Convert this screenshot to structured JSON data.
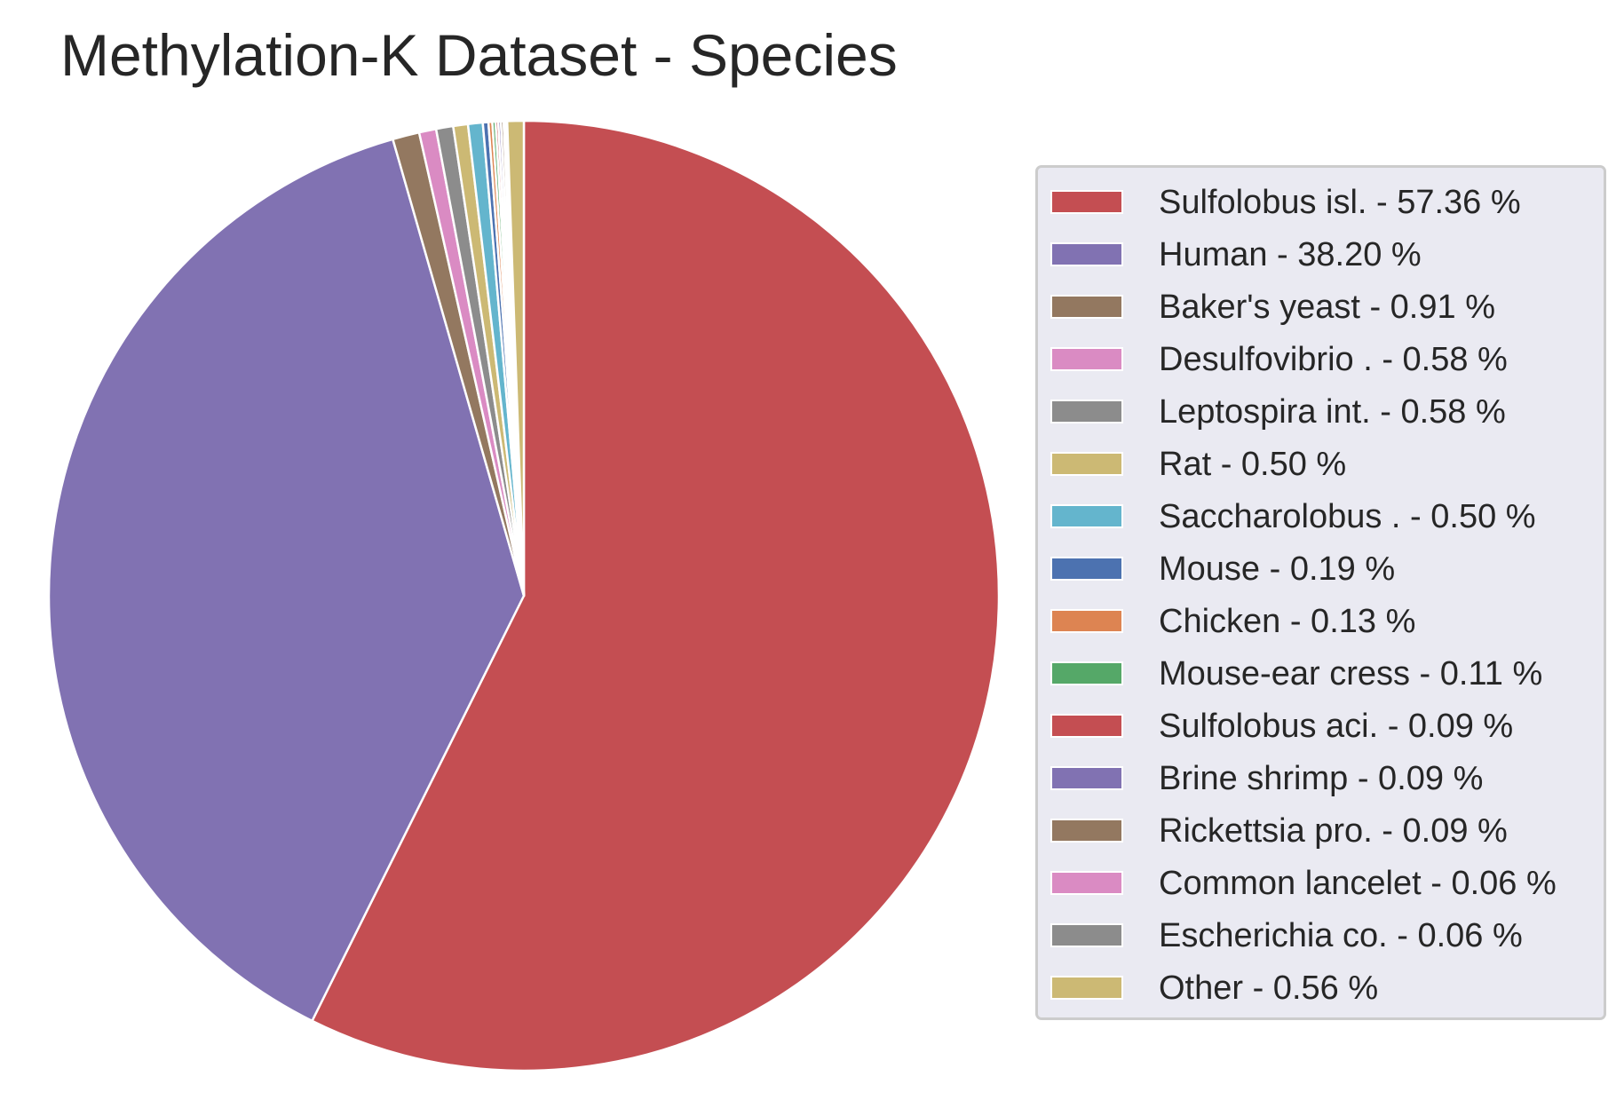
{
  "chart_data": {
    "type": "pie",
    "title": "Methylation-K Dataset - Species",
    "start_angle_deg": 90,
    "direction": "clockwise",
    "slice_edge_color": "#ffffff",
    "legend_placement": "right",
    "slices": [
      {
        "label": "Sulfolobus isl. - 57.36 %",
        "name": "Sulfolobus isl.",
        "value": 57.36,
        "color": "#c44e52"
      },
      {
        "label": "Human - 38.20 %",
        "name": "Human",
        "value": 38.2,
        "color": "#8172b2"
      },
      {
        "label": "Baker's yeast - 0.91 %",
        "name": "Baker's yeast",
        "value": 0.91,
        "color": "#937860"
      },
      {
        "label": "Desulfovibrio . - 0.58 %",
        "name": "Desulfovibrio .",
        "value": 0.58,
        "color": "#da8bc3"
      },
      {
        "label": "Leptospira int. - 0.58 %",
        "name": "Leptospira int.",
        "value": 0.58,
        "color": "#8c8c8c"
      },
      {
        "label": "Rat - 0.50 %",
        "name": "Rat",
        "value": 0.5,
        "color": "#ccb974"
      },
      {
        "label": "Saccharolobus . - 0.50 %",
        "name": "Saccharolobus .",
        "value": 0.5,
        "color": "#64b5cd"
      },
      {
        "label": "Mouse - 0.19 %",
        "name": "Mouse",
        "value": 0.19,
        "color": "#4c72b0"
      },
      {
        "label": "Chicken - 0.13 %",
        "name": "Chicken",
        "value": 0.13,
        "color": "#dd8452"
      },
      {
        "label": "Mouse-ear cress - 0.11 %",
        "name": "Mouse-ear cress",
        "value": 0.11,
        "color": "#55a868"
      },
      {
        "label": "Sulfolobus aci. - 0.09 %",
        "name": "Sulfolobus aci.",
        "value": 0.09,
        "color": "#c44e52"
      },
      {
        "label": "Brine shrimp - 0.09 %",
        "name": "Brine shrimp",
        "value": 0.09,
        "color": "#8172b2"
      },
      {
        "label": "Rickettsia pro. - 0.09 %",
        "name": "Rickettsia pro.",
        "value": 0.09,
        "color": "#937860"
      },
      {
        "label": "Common lancelet - 0.06 %",
        "name": "Common lancelet",
        "value": 0.06,
        "color": "#da8bc3"
      },
      {
        "label": "Escherichia co. - 0.06 %",
        "name": "Escherichia co.",
        "value": 0.06,
        "color": "#8c8c8c"
      },
      {
        "label": "Other - 0.56 %",
        "name": "Other",
        "value": 0.56,
        "color": "#ccb974"
      }
    ]
  }
}
